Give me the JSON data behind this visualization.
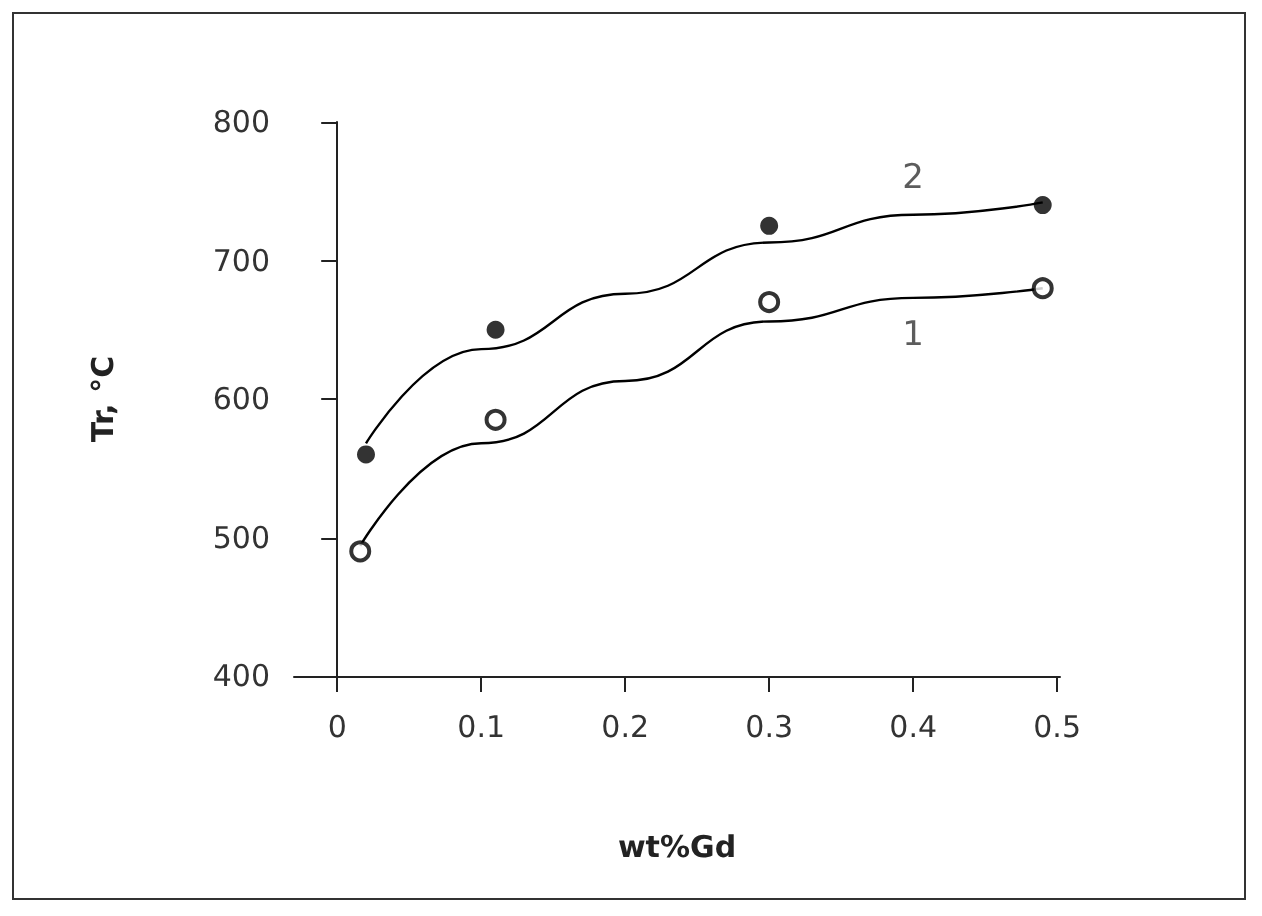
{
  "chart_data": {
    "type": "scatter",
    "xlabel": "wt%Gd",
    "ylabel": "Tr, °C",
    "xlim": [
      -0.03,
      0.502
    ],
    "xticks": [
      0,
      0.1,
      0.2,
      0.3,
      0.4,
      0.5
    ],
    "ylim": [
      400,
      800
    ],
    "yticks": [
      400,
      500,
      600,
      700,
      800
    ],
    "grid": false,
    "series": [
      {
        "color": "#000000",
        "marker": "circle",
        "x": [
          0.016,
          0.11,
          0.3,
          0.49
        ],
        "values": [
          490,
          585,
          670,
          680
        ]
      },
      {
        "color": "#000000",
        "marker": "circle",
        "x": [
          0.02,
          0.11,
          0.3,
          0.49
        ],
        "values": [
          560,
          650,
          725,
          740
        ]
      },
      {
        "type": "line",
        "color": "#000000",
        "marker": "none",
        "x": [
          0.016,
          0.1,
          0.2,
          0.3,
          0.4,
          0.49
        ],
        "values": [
          494,
          568,
          613,
          656,
          673,
          680
        ]
      },
      {
        "type": "line",
        "color": "#000000",
        "marker": "none",
        "x": [
          0.02,
          0.1,
          0.2,
          0.3,
          0.4,
          0.49
        ],
        "values": [
          568,
          636,
          676,
          713,
          733,
          742
        ]
      }
    ],
    "annotations": [
      "1",
      "2"
    ]
  }
}
